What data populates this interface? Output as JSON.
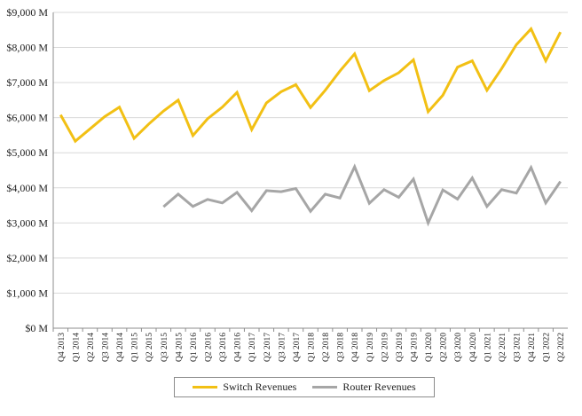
{
  "chart_data": {
    "type": "line",
    "title": "",
    "xlabel": "",
    "ylabel": "",
    "ylim": [
      0,
      9000
    ],
    "y_ticks": [
      0,
      1000,
      2000,
      3000,
      4000,
      5000,
      6000,
      7000,
      8000,
      9000
    ],
    "y_tick_labels": [
      "$0 M",
      "$1,000 M",
      "$2,000 M",
      "$3,000 M",
      "$4,000 M",
      "$5,000 M",
      "$6,000 M",
      "$7,000 M",
      "$8,000 M",
      "$9,000 M"
    ],
    "grid": true,
    "legend_position": "bottom",
    "categories": [
      "Q4 2013",
      "Q1 2014",
      "Q2 2014",
      "Q3 2014",
      "Q4 2014",
      "Q1 2015",
      "Q2 2015",
      "Q3 2015",
      "Q4 2015",
      "Q1 2016",
      "Q2 2016",
      "Q3 2016",
      "Q4 2016",
      "Q1 2017",
      "Q2 2017",
      "Q3 2017",
      "Q4 2017",
      "Q1 2018",
      "Q2 2018",
      "Q3 2018",
      "Q4 2018",
      "Q1 2019",
      "Q2 2019",
      "Q3 2019",
      "Q4 2019",
      "Q1 2020",
      "Q2 2020",
      "Q3 2020",
      "Q4 2020",
      "Q1 2021",
      "Q2 2021",
      "Q3 2021",
      "Q4 2021",
      "Q1 2022",
      "Q2 2022"
    ],
    "series": [
      {
        "name": "Switch Revenues",
        "color": "#f2c014",
        "values": [
          6080,
          5330,
          5680,
          6030,
          6300,
          5410,
          5820,
          6190,
          6500,
          5490,
          5970,
          6300,
          6720,
          5660,
          6420,
          6740,
          6940,
          6290,
          6780,
          7330,
          7820,
          6770,
          7060,
          7280,
          7650,
          6170,
          6640,
          7440,
          7620,
          6780,
          7400,
          8080,
          8530,
          7620,
          8440
        ]
      },
      {
        "name": "Router Revenues",
        "color": "#a6a6a6",
        "values": [
          null,
          null,
          null,
          null,
          null,
          null,
          null,
          3460,
          3820,
          3470,
          3670,
          3570,
          3870,
          3350,
          3920,
          3890,
          3980,
          3330,
          3820,
          3710,
          4600,
          3560,
          3950,
          3730,
          4250,
          3000,
          3940,
          3680,
          4280,
          3470,
          3950,
          3850,
          4580,
          3570,
          4180
        ]
      }
    ]
  }
}
